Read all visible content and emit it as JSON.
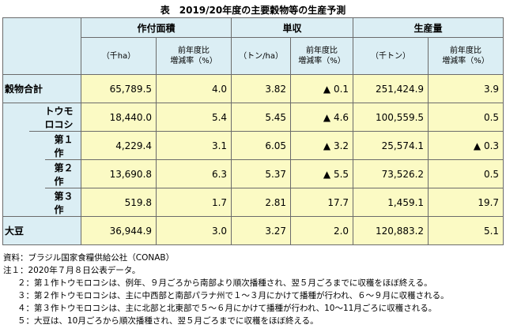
{
  "title": "表　2019/20年度の主要穀物等の生産予測",
  "header": {
    "groups": [
      "作付面積",
      "単収",
      "生産量"
    ],
    "sub": [
      [
        "（千ha）",
        "前年度比\n増減率（%）"
      ],
      [
        "（トン/ha）",
        "前年度比\n増減率（%）"
      ],
      [
        "（千トン）",
        "前年度比\n増減率（%）"
      ]
    ]
  },
  "rows": [
    {
      "label": "穀物合計",
      "area": "65,789.5",
      "area_chg": "4.0",
      "yield": "3.82",
      "yield_chg": "▲ 0.1",
      "prod": "251,424.9",
      "prod_chg": "3.9"
    },
    {
      "label": "トウモロコシ",
      "area": "18,440.0",
      "area_chg": "5.4",
      "yield": "5.45",
      "yield_chg": "▲ 4.6",
      "prod": "100,559.5",
      "prod_chg": "0.5"
    },
    {
      "label": "第１作",
      "area": "4,229.4",
      "area_chg": "3.1",
      "yield": "6.05",
      "yield_chg": "▲ 3.2",
      "prod": "25,574.1",
      "prod_chg": "▲ 0.3"
    },
    {
      "label": "第２作",
      "area": "13,690.8",
      "area_chg": "6.3",
      "yield": "5.37",
      "yield_chg": "▲ 5.5",
      "prod": "73,526.2",
      "prod_chg": "0.5"
    },
    {
      "label": "第３作",
      "area": "519.8",
      "area_chg": "1.7",
      "yield": "2.81",
      "yield_chg": "17.7",
      "prod": "1,459.1",
      "prod_chg": "19.7"
    },
    {
      "label": "大豆",
      "area": "36,944.9",
      "area_chg": "3.0",
      "yield": "3.27",
      "yield_chg": "2.0",
      "prod": "120,883.2",
      "prod_chg": "5.1"
    }
  ],
  "notes": [
    "資料：ブラジル国家食糧供給公社（CONAB）",
    "注１：2020年７月８日公表データ。",
    "２：第１作トウモロコシは、例年、９月ごろから南部より順次播種され、翌５月ごろまでに収穫をほぼ終える。",
    "３：第２作トウモロコシは、主に中西部と南部パラナ州で１～３月にかけて播種が行われ、６～９月に収穫される。",
    "４：第３作トウモロコシは、主に北部と北東部で５～６月にかけて播種が行われ、10～11月ごろに収穫される。",
    "５：大豆は、10月ごろから順次播種され、翌５月ごろまでに収穫をほぼ終える。"
  ]
}
